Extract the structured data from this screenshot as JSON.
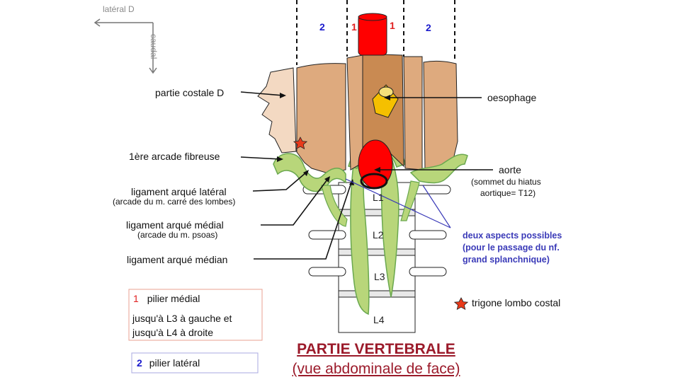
{
  "orientation": {
    "lateral": "latéral D",
    "caudal": "caudal"
  },
  "pillar_numbers": {
    "lateral_left": "2",
    "medial_left": "1",
    "medial_right": "1",
    "lateral_right": "2"
  },
  "labels": {
    "partie_costale": "partie costale D",
    "arcade_fibreuse": "1ère arcade fibreuse",
    "lig_lateral": "ligament arqué latéral",
    "lig_lateral_sub": "(arcade du m. carré des lombes)",
    "lig_medial": "ligament arqué médial",
    "lig_medial_sub": "(arcade du m. psoas)",
    "lig_median": "ligament arqué médian",
    "oesophage": "oesophage",
    "aorte": "aorte",
    "aorte_sub1": "(sommet du hiatus",
    "aorte_sub2": "aortique= T12)",
    "deux_aspects_1": "deux aspects possibles",
    "deux_aspects_2": "(pour le passage du nf.",
    "deux_aspects_3": "grand splanchnique)",
    "trigone": "trigone lombo costal"
  },
  "vertebrae": [
    "L1",
    "L2",
    "L3",
    "L4"
  ],
  "legend": {
    "box1_num": "1",
    "box1_title": "pilier médial",
    "box1_line2": "jusqu'à L3 à gauche et",
    "box1_line3": "jusqu'à L4 à droite",
    "box2_num": "2",
    "box2_title": "pilier latéral"
  },
  "title": {
    "line1": "PARTIE VERTEBRALE",
    "line2": "(vue abdominale de face)"
  },
  "colors": {
    "muscle": "#deaa7e",
    "muscle_dark": "#c98a52",
    "ligament": "#b8d67a",
    "ligament_dark": "#6aa84f",
    "aorta": "#ff0000",
    "oesophagus": "#f5c000",
    "medial_num": "#e02020",
    "lateral_num": "#1a1acc",
    "title": "#9b1a2a",
    "legend_box1_border": "#e8a090",
    "legend_box2_border": "#a8a8e0",
    "blue_text": "#3a3ab8"
  }
}
